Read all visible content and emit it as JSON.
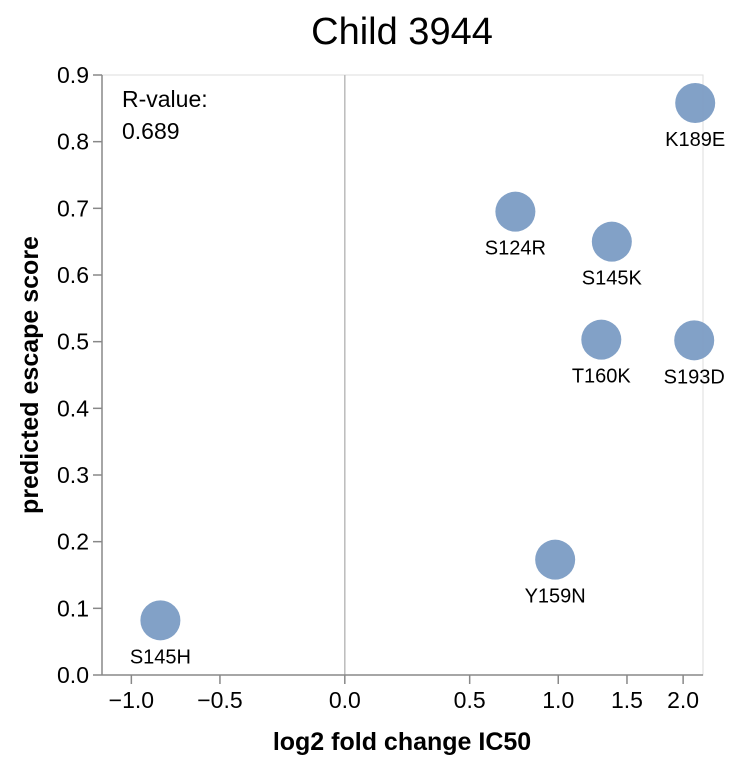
{
  "chart_data": {
    "type": "scatter",
    "title": "Child 3944",
    "xlabel": "log2 fold change IC50",
    "ylabel": "predicted escape score",
    "x_ticks": [
      {
        "value": -1.0,
        "label": "−1.0"
      },
      {
        "value": -0.5,
        "label": "−0.5"
      },
      {
        "value": 0.0,
        "label": "0.0"
      },
      {
        "value": 0.5,
        "label": "0.5"
      },
      {
        "value": 1.0,
        "label": "1.0"
      },
      {
        "value": 1.5,
        "label": "1.5"
      },
      {
        "value": 2.0,
        "label": "2.0"
      }
    ],
    "y_ticks": [
      {
        "value": 0.0,
        "label": "0.0"
      },
      {
        "value": 0.1,
        "label": "0.1"
      },
      {
        "value": 0.2,
        "label": "0.2"
      },
      {
        "value": 0.3,
        "label": "0.3"
      },
      {
        "value": 0.4,
        "label": "0.4"
      },
      {
        "value": 0.5,
        "label": "0.5"
      },
      {
        "value": 0.6,
        "label": "0.6"
      },
      {
        "value": 0.7,
        "label": "0.7"
      },
      {
        "value": 0.8,
        "label": "0.8"
      },
      {
        "value": 0.9,
        "label": "0.9"
      }
    ],
    "ylim": [
      0,
      0.9
    ],
    "grid": false,
    "reference_lines": {
      "x": 0
    },
    "annotation": {
      "line1": "R-value:",
      "line2": "0.689",
      "position": "top-left"
    },
    "point_color": "#7b9cc4",
    "points": [
      {
        "label": "S145H",
        "x": -0.82,
        "y": 0.082
      },
      {
        "label": "S124R",
        "x": 0.74,
        "y": 0.695
      },
      {
        "label": "S145K",
        "x": 1.38,
        "y": 0.65
      },
      {
        "label": "T160K",
        "x": 1.3,
        "y": 0.503
      },
      {
        "label": "Y159N",
        "x": 0.98,
        "y": 0.173
      },
      {
        "label": "K189E",
        "x": 2.12,
        "y": 0.858
      },
      {
        "label": "S193D",
        "x": 2.11,
        "y": 0.502
      }
    ]
  }
}
